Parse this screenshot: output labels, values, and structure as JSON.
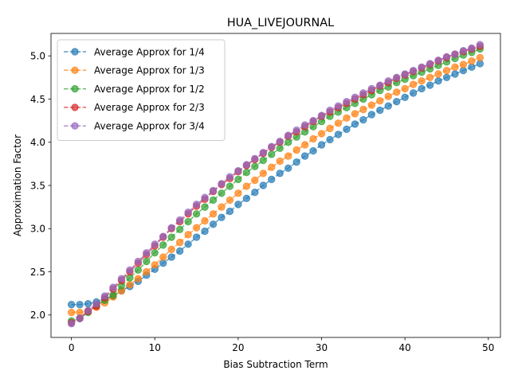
{
  "chart_data": {
    "type": "line",
    "title": "HUA_LIVEJOURNAL",
    "xlabel": "Bias Subtraction Term",
    "ylabel": "Approximation Factor",
    "xlim": [
      -2.45,
      51.45
    ],
    "ylim": [
      1.74,
      5.26
    ],
    "xticks": [
      0,
      10,
      20,
      30,
      40,
      50
    ],
    "yticks": [
      2.0,
      2.5,
      3.0,
      3.5,
      4.0,
      4.5,
      5.0
    ],
    "xtick_labels": [
      "0",
      "10",
      "20",
      "30",
      "40",
      "50"
    ],
    "ytick_labels": [
      "2.0",
      "2.5",
      "3.0",
      "3.5",
      "4.0",
      "4.5",
      "5.0"
    ],
    "grid": false,
    "legend_position": "upper-left",
    "x": [
      0,
      1,
      2,
      3,
      4,
      5,
      6,
      7,
      8,
      9,
      10,
      11,
      12,
      13,
      14,
      15,
      16,
      17,
      18,
      19,
      20,
      21,
      22,
      23,
      24,
      25,
      26,
      27,
      28,
      29,
      30,
      31,
      32,
      33,
      34,
      35,
      36,
      37,
      38,
      39,
      40,
      41,
      42,
      43,
      44,
      45,
      46,
      47,
      48,
      49
    ],
    "series": [
      {
        "name": "Average Approx for 1/4",
        "color": "#1f77b4",
        "values": [
          2.12,
          2.12,
          2.13,
          2.15,
          2.18,
          2.22,
          2.28,
          2.33,
          2.39,
          2.46,
          2.53,
          2.6,
          2.67,
          2.74,
          2.82,
          2.9,
          2.97,
          3.05,
          3.13,
          3.2,
          3.28,
          3.35,
          3.42,
          3.5,
          3.57,
          3.64,
          3.7,
          3.77,
          3.84,
          3.9,
          3.97,
          4.03,
          4.09,
          4.15,
          4.21,
          4.26,
          4.32,
          4.37,
          4.42,
          4.47,
          4.52,
          4.57,
          4.62,
          4.66,
          4.71,
          4.75,
          4.79,
          4.83,
          4.87,
          4.91
        ]
      },
      {
        "name": "Average Approx for 1/3",
        "color": "#ff7f0e",
        "values": [
          2.03,
          2.03,
          2.05,
          2.09,
          2.14,
          2.21,
          2.28,
          2.35,
          2.42,
          2.5,
          2.58,
          2.67,
          2.76,
          2.84,
          2.93,
          3.01,
          3.09,
          3.17,
          3.25,
          3.33,
          3.41,
          3.49,
          3.56,
          3.64,
          3.71,
          3.78,
          3.84,
          3.91,
          3.97,
          4.04,
          4.1,
          4.16,
          4.22,
          4.28,
          4.33,
          4.38,
          4.43,
          4.48,
          4.53,
          4.58,
          4.62,
          4.67,
          4.71,
          4.75,
          4.79,
          4.83,
          4.87,
          4.9,
          4.94,
          4.98
        ]
      },
      {
        "name": "Average Approx for 1/2",
        "color": "#2ca02c",
        "values": [
          1.93,
          1.96,
          2.03,
          2.11,
          2.17,
          2.23,
          2.34,
          2.43,
          2.52,
          2.62,
          2.72,
          2.81,
          2.9,
          2.99,
          3.08,
          3.17,
          3.25,
          3.33,
          3.41,
          3.49,
          3.57,
          3.65,
          3.72,
          3.79,
          3.86,
          3.93,
          4.0,
          4.06,
          4.12,
          4.18,
          4.24,
          4.3,
          4.35,
          4.4,
          4.45,
          4.5,
          4.55,
          4.6,
          4.64,
          4.69,
          4.73,
          4.77,
          4.81,
          4.85,
          4.89,
          4.93,
          4.97,
          5.01,
          5.04,
          5.08
        ]
      },
      {
        "name": "Average Approx for 2/3",
        "color": "#d62728",
        "values": [
          1.91,
          1.96,
          2.04,
          2.1,
          2.2,
          2.3,
          2.4,
          2.5,
          2.6,
          2.7,
          2.8,
          2.9,
          3.0,
          3.08,
          3.17,
          3.26,
          3.34,
          3.43,
          3.51,
          3.58,
          3.66,
          3.73,
          3.8,
          3.87,
          3.94,
          4.0,
          4.07,
          4.12,
          4.18,
          4.24,
          4.3,
          4.35,
          4.4,
          4.45,
          4.5,
          4.55,
          4.6,
          4.65,
          4.69,
          4.74,
          4.78,
          4.82,
          4.86,
          4.9,
          4.94,
          4.98,
          5.02,
          5.05,
          5.08,
          5.11
        ]
      },
      {
        "name": "Average Approx for 3/4",
        "color": "#9467bd",
        "values": [
          1.9,
          1.96,
          2.05,
          2.13,
          2.22,
          2.32,
          2.42,
          2.52,
          2.62,
          2.72,
          2.82,
          2.91,
          3.01,
          3.1,
          3.19,
          3.28,
          3.36,
          3.44,
          3.52,
          3.6,
          3.67,
          3.74,
          3.81,
          3.88,
          3.95,
          4.01,
          4.08,
          4.14,
          4.2,
          4.25,
          4.31,
          4.37,
          4.42,
          4.47,
          4.52,
          4.57,
          4.62,
          4.66,
          4.71,
          4.75,
          4.79,
          4.83,
          4.87,
          4.91,
          4.95,
          4.99,
          5.02,
          5.06,
          5.09,
          5.13
        ]
      }
    ]
  }
}
